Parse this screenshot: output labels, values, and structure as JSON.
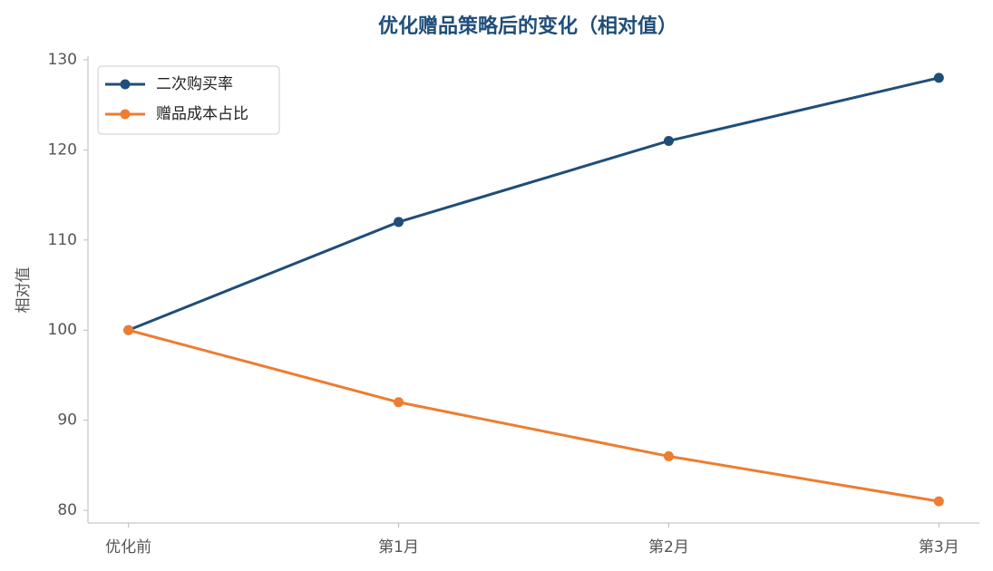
{
  "chart_data": {
    "type": "line",
    "title": "优化赠品策略后的变化（相对值）",
    "y_label": "相对值",
    "categories": [
      "优化前",
      "第1月",
      "第2月",
      "第3月"
    ],
    "series": [
      {
        "name": "二次购买率",
        "color": "#1f4e79",
        "values": [
          100,
          112,
          121,
          128
        ]
      },
      {
        "name": "赠品成本占比",
        "color": "#ed7d31",
        "values": [
          100,
          92,
          86,
          81
        ]
      }
    ],
    "ylim": [
      78.6,
      130.4
    ],
    "yticks": [
      80,
      90,
      100,
      110,
      120,
      130
    ],
    "legend": "upper left"
  }
}
